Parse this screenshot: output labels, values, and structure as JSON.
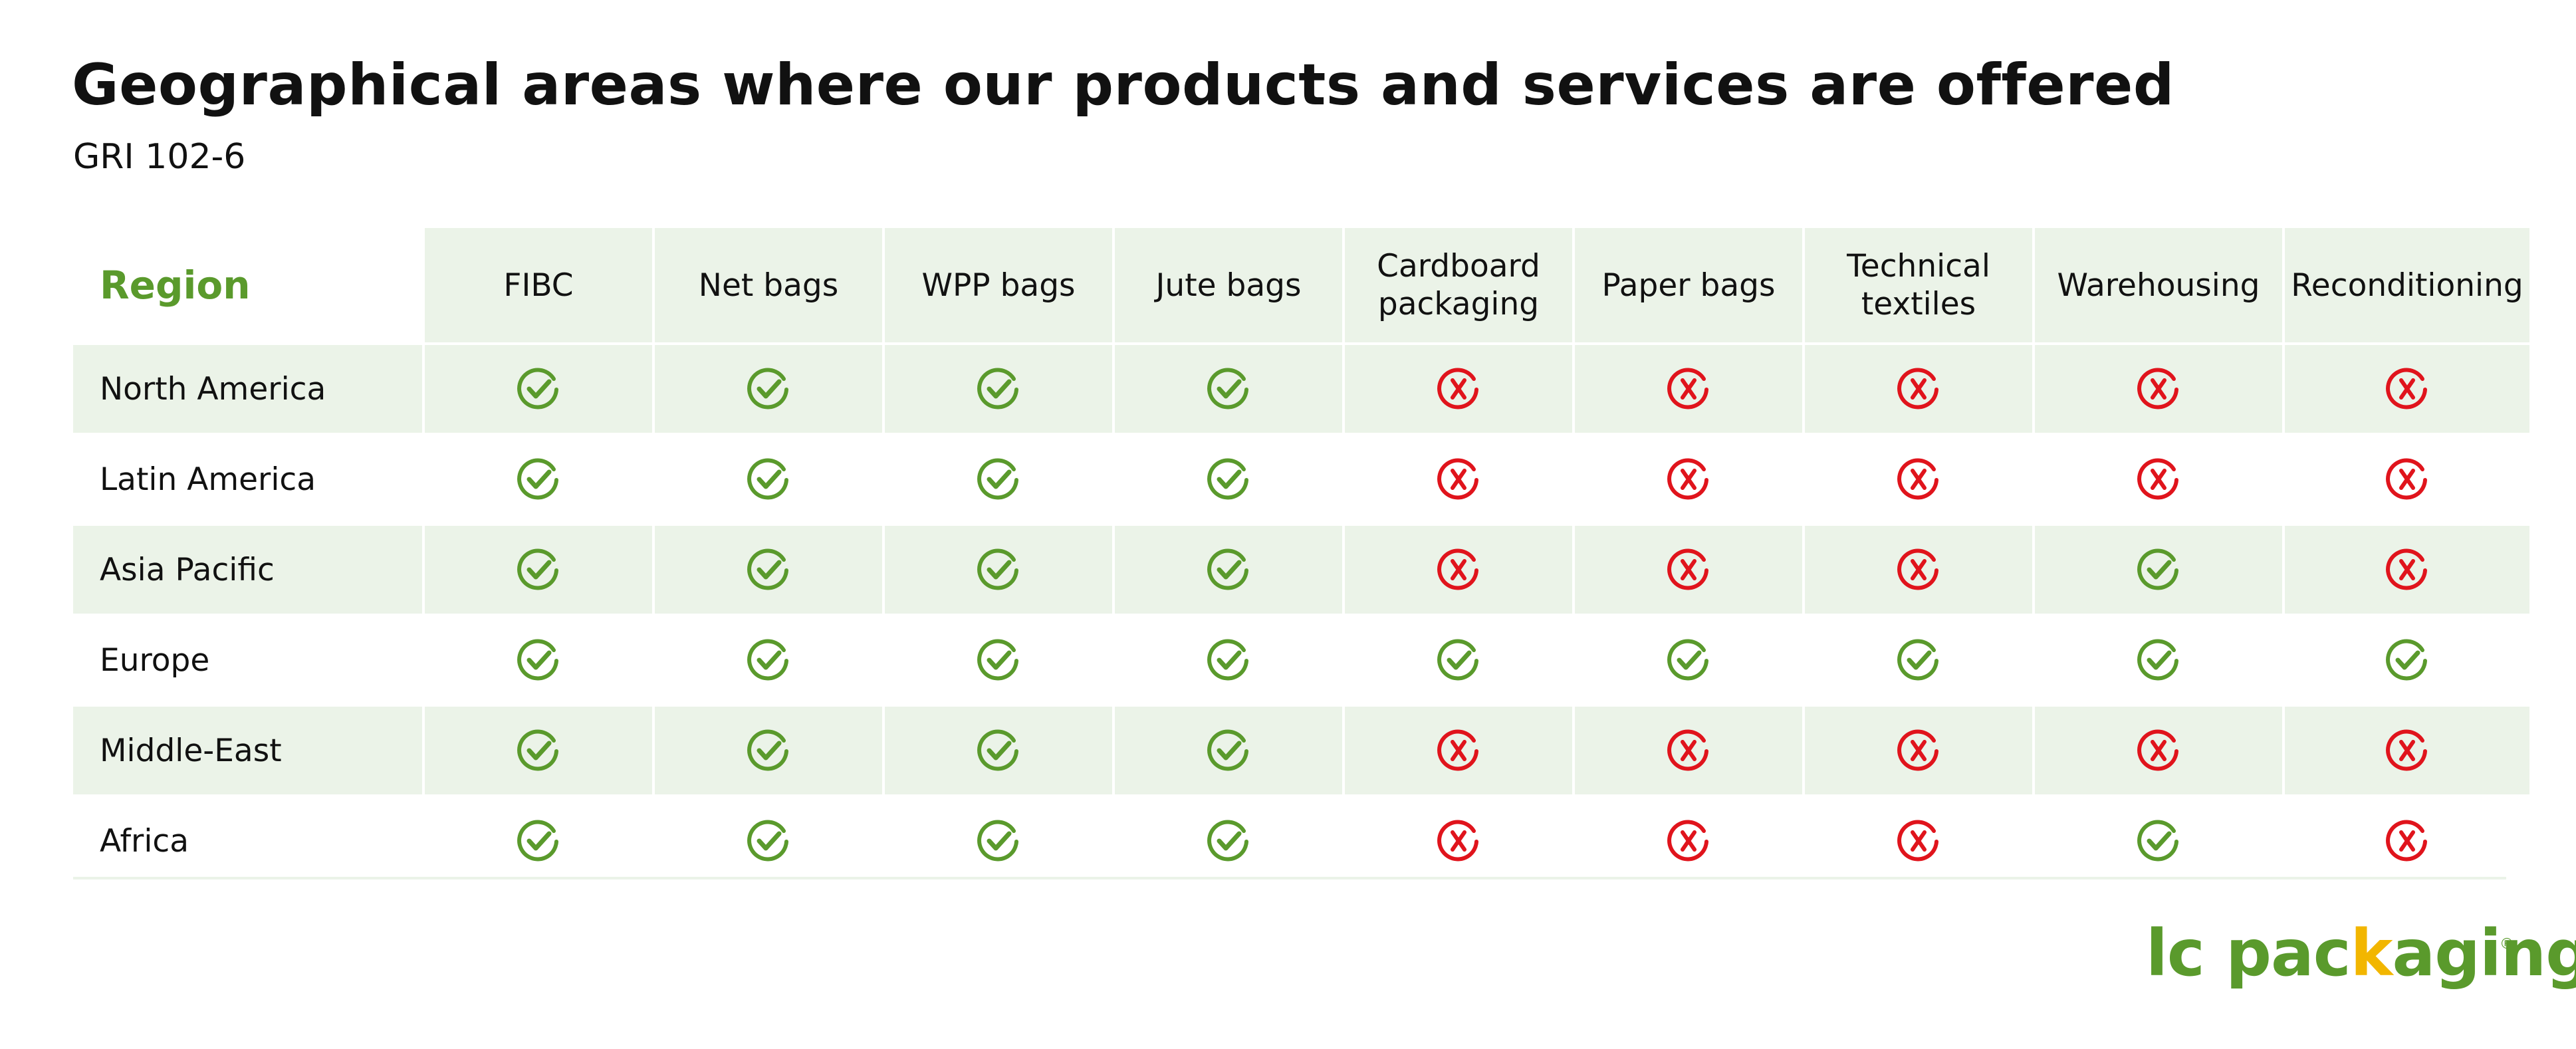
{
  "title": "Geographical areas where our products and services are offered",
  "subtitle": "GRI 102-6",
  "table": {
    "region_header": "Region",
    "columns": [
      "FIBC",
      "Net bags",
      "WPP bags",
      "Jute bags",
      "Cardboard packaging",
      "Paper bags",
      "Technical textiles",
      "Warehousing",
      "Reconditioning"
    ],
    "rows": [
      {
        "region": "North America",
        "offered": [
          true,
          true,
          true,
          true,
          false,
          false,
          false,
          false,
          false
        ]
      },
      {
        "region": "Latin America",
        "offered": [
          true,
          true,
          true,
          true,
          false,
          false,
          false,
          false,
          false
        ]
      },
      {
        "region": "Asia Pacific",
        "offered": [
          true,
          true,
          true,
          true,
          false,
          false,
          false,
          true,
          false
        ]
      },
      {
        "region": "Europe",
        "offered": [
          true,
          true,
          true,
          true,
          true,
          true,
          true,
          true,
          true
        ]
      },
      {
        "region": "Middle-East",
        "offered": [
          true,
          true,
          true,
          true,
          false,
          false,
          false,
          false,
          false
        ]
      },
      {
        "region": "Africa",
        "offered": [
          true,
          true,
          true,
          true,
          false,
          false,
          false,
          true,
          false
        ]
      }
    ]
  },
  "icons": {
    "offered": "check-circle-icon",
    "not_offered": "x-circle-icon"
  },
  "colors": {
    "brand_green": "#5a9a2c",
    "cross_red": "#e0141c",
    "row_shade": "#ebf3e8",
    "logo_accent": "#f2b600"
  },
  "logo": {
    "part1": "lc pac",
    "accent": "k",
    "part2": "aging",
    "registered": "®"
  }
}
